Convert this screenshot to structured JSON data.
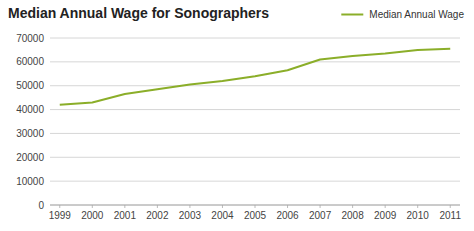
{
  "chart_data": {
    "type": "line",
    "title": "Median Annual Wage for Sonographers",
    "x": [
      1999,
      2000,
      2001,
      2002,
      2003,
      2004,
      2005,
      2006,
      2007,
      2008,
      2009,
      2010,
      2011
    ],
    "series": [
      {
        "name": "Median Annual Wage",
        "color": "#8BAE29",
        "values": [
          42000,
          43000,
          46500,
          48500,
          50500,
          52000,
          54000,
          56500,
          61000,
          62500,
          63500,
          65000,
          65500
        ]
      }
    ],
    "xlim": [
      1998.7,
      2011.3
    ],
    "xticks": [
      1999,
      2000,
      2001,
      2002,
      2003,
      2004,
      2005,
      2006,
      2007,
      2008,
      2009,
      2010,
      2011
    ],
    "ylim": [
      0,
      70000
    ],
    "yticks": [
      0,
      10000,
      20000,
      30000,
      40000,
      50000,
      60000,
      70000
    ],
    "grid": true,
    "legend": "upper right"
  }
}
